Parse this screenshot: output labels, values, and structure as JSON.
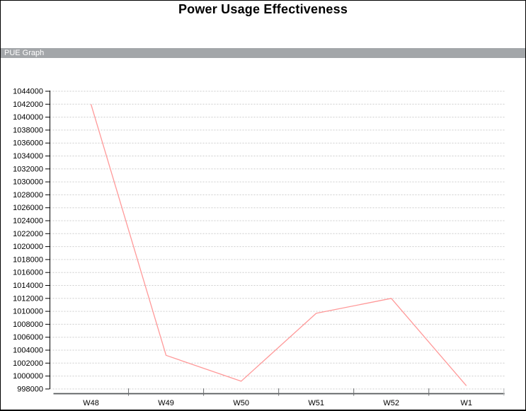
{
  "title": "Power Usage Effectiveness",
  "section_bar": {
    "label": "PUE Graph"
  },
  "colors": {
    "line": "#ff9999",
    "bar_bg": "#a3a6a9",
    "bar_text": "#ffffff",
    "grid": "#cdcdcd",
    "y_axis": "#000000",
    "x_axis": "#55585a",
    "label_text": "#000000"
  },
  "chart_data": {
    "type": "line",
    "title": "Power Usage Effectiveness",
    "subtitle": "PUE Graph",
    "categories": [
      "W48",
      "W49",
      "W50",
      "W51",
      "W52",
      "W1"
    ],
    "series": [
      {
        "name": "PUE Graph",
        "values": [
          1042000,
          1003200,
          999200,
          1009700,
          1012000,
          998500
        ]
      }
    ],
    "xlabel": "",
    "ylabel": "",
    "ylim": [
      998000,
      1044000
    ],
    "ytick_step": 2000,
    "grid": "horizontal-dotted",
    "legend_position": "none"
  }
}
